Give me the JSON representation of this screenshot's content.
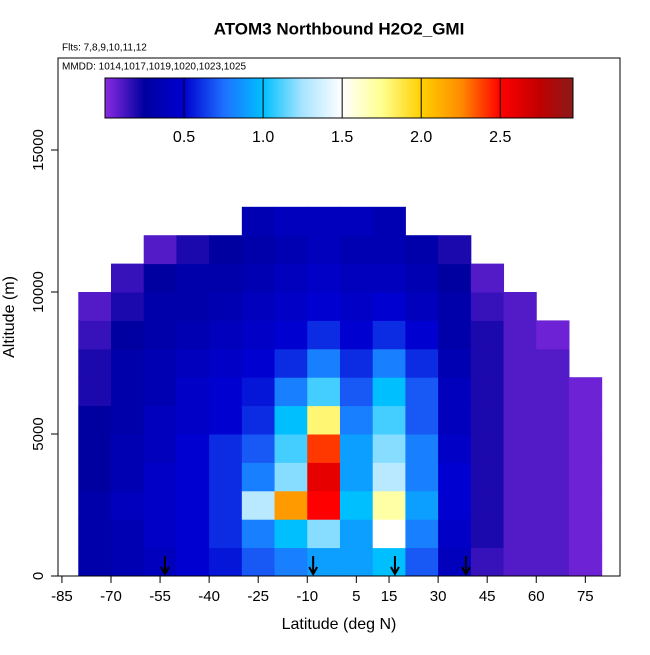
{
  "chart_data": {
    "type": "heatmap",
    "title": "ATOM3 Northbound H2O2_GMI",
    "subtitle": "Flts: 7,8,9,10,11,12",
    "annotation": "MMDD: 1014,1017,1019,1020,1023,1025",
    "x_label": "Latitude (deg N)",
    "y_label": "Altitude (m)",
    "xlim": [
      -86.2,
      85.6
    ],
    "xticks": [
      -85,
      -70,
      -55,
      -40,
      -25,
      -10,
      5,
      15,
      30,
      45,
      60,
      75
    ],
    "ylim": [
      0,
      18240
    ],
    "yticks": [
      0,
      5000,
      10000,
      15000
    ],
    "x_edges": [
      -80,
      -70,
      -60,
      -50,
      -40,
      -30,
      -20,
      -10,
      0,
      10,
      20,
      30,
      40,
      50,
      60,
      70,
      80
    ],
    "y_edges": [
      0,
      1000,
      2000,
      3000,
      4000,
      5000,
      6000,
      7000,
      8000,
      9000,
      10000,
      11000,
      12000,
      13000
    ],
    "values": [
      [
        0.3,
        0.35,
        0.4,
        0.5,
        0.55,
        0.7,
        0.8,
        0.9,
        0.9,
        1.0,
        0.7,
        0.4,
        0.15,
        0.1,
        0.1,
        0.05
      ],
      [
        0.3,
        0.35,
        0.45,
        0.5,
        0.6,
        0.8,
        1.0,
        1.2,
        0.9,
        1.5,
        0.8,
        0.45,
        0.2,
        0.1,
        0.1,
        0.05
      ],
      [
        0.3,
        0.4,
        0.45,
        0.5,
        0.6,
        1.3,
        2.2,
        2.5,
        1.0,
        1.7,
        0.9,
        0.5,
        0.2,
        0.1,
        0.1,
        0.05
      ],
      [
        0.25,
        0.35,
        0.45,
        0.5,
        0.6,
        0.8,
        1.2,
        2.6,
        0.9,
        1.3,
        0.8,
        0.5,
        0.2,
        0.1,
        0.1,
        0.05
      ],
      [
        0.25,
        0.35,
        0.4,
        0.5,
        0.6,
        0.7,
        1.1,
        2.4,
        0.9,
        1.2,
        0.8,
        0.45,
        0.2,
        0.1,
        0.1,
        0.05
      ],
      [
        0.25,
        0.3,
        0.4,
        0.45,
        0.5,
        0.6,
        1.0,
        1.8,
        0.8,
        1.1,
        0.7,
        0.4,
        0.2,
        0.1,
        0.1,
        0.05
      ],
      [
        0.2,
        0.3,
        0.35,
        0.45,
        0.5,
        0.55,
        0.8,
        1.1,
        0.7,
        1.0,
        0.7,
        0.4,
        0.2,
        0.1,
        0.1,
        0.05
      ],
      [
        0.2,
        0.3,
        0.35,
        0.4,
        0.45,
        0.5,
        0.6,
        0.8,
        0.6,
        0.8,
        0.6,
        0.35,
        0.2,
        0.1,
        0.1,
        null
      ],
      [
        0.15,
        0.25,
        0.3,
        0.35,
        0.4,
        0.45,
        0.5,
        0.6,
        0.5,
        0.6,
        0.5,
        0.3,
        0.2,
        0.1,
        0.05,
        null
      ],
      [
        0.1,
        0.2,
        0.3,
        0.3,
        0.35,
        0.4,
        0.45,
        0.5,
        0.45,
        0.5,
        0.4,
        0.3,
        0.15,
        0.1,
        null,
        null
      ],
      [
        null,
        0.15,
        0.25,
        0.3,
        0.3,
        0.35,
        0.4,
        0.45,
        0.4,
        0.4,
        0.35,
        0.25,
        0.1,
        null,
        null,
        null
      ],
      [
        null,
        null,
        0.1,
        0.2,
        0.25,
        0.3,
        0.35,
        0.4,
        0.35,
        0.35,
        0.3,
        0.2,
        null,
        null,
        null,
        null
      ],
      [
        null,
        null,
        null,
        null,
        null,
        0.35,
        0.4,
        0.4,
        0.4,
        0.35,
        null,
        null,
        null,
        null,
        null,
        null
      ]
    ],
    "arrows": [
      -53.5,
      -8.2,
      16.8,
      38.5
    ],
    "colorbar": {
      "lim": [
        0,
        2.96
      ],
      "ticks": [
        0.5,
        {
          "value": 1,
          "label": "1.0"
        },
        1.5,
        {
          "value": 2,
          "label": "2.0"
        },
        2.5
      ],
      "colorscale": [
        [
          0,
          "#8a2be2"
        ],
        [
          0.25,
          "#0000a0"
        ],
        [
          0.5,
          "#0000d0"
        ],
        [
          0.75,
          "#1e6fff"
        ],
        [
          1.0,
          "#00bfff"
        ],
        [
          1.25,
          "#a8e4ff"
        ],
        [
          1.5,
          "#ffffff"
        ],
        [
          1.75,
          "#ffff90"
        ],
        [
          2.0,
          "#ffd000"
        ],
        [
          2.25,
          "#ff8c00"
        ],
        [
          2.5,
          "#ff0000"
        ],
        [
          2.75,
          "#c00000"
        ],
        [
          2.96,
          "#8b1a1a"
        ]
      ]
    }
  }
}
